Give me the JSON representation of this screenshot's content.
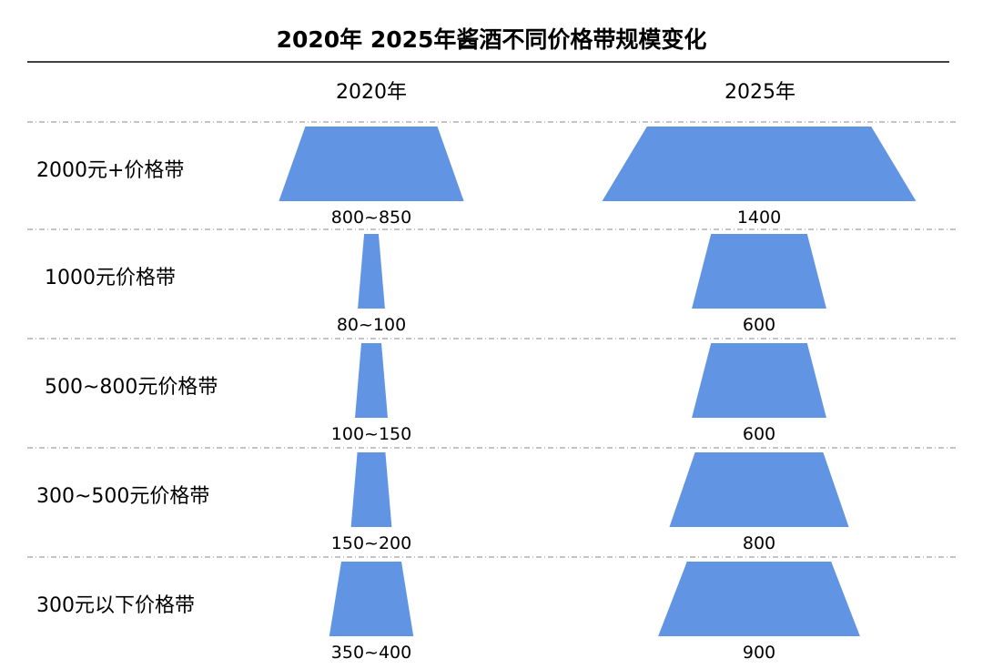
{
  "chart_data": {
    "type": "funnel-comparison",
    "title": "2020年 2025年酱酒不同价格带规模变化",
    "columns": [
      "2020年",
      "2025年"
    ],
    "categories": [
      "2000元+价格带",
      "1000元价格带",
      "500~800元价格带",
      "300~500元价格带",
      "300元以下价格带"
    ],
    "series": [
      {
        "name": "2020年",
        "labels": [
          "800~850",
          "80~100",
          "100~150",
          "150~200",
          "350~400"
        ],
        "values": [
          825,
          90,
          125,
          175,
          375
        ]
      },
      {
        "name": "2025年",
        "labels": [
          "1400",
          "600",
          "600",
          "800",
          "900"
        ],
        "values": [
          1400,
          600,
          600,
          800,
          900
        ]
      }
    ],
    "colors": {
      "shape": "#6195e4",
      "text": "#1a1a1a",
      "rule": "#000000",
      "divider": "#8a8a8a"
    }
  }
}
